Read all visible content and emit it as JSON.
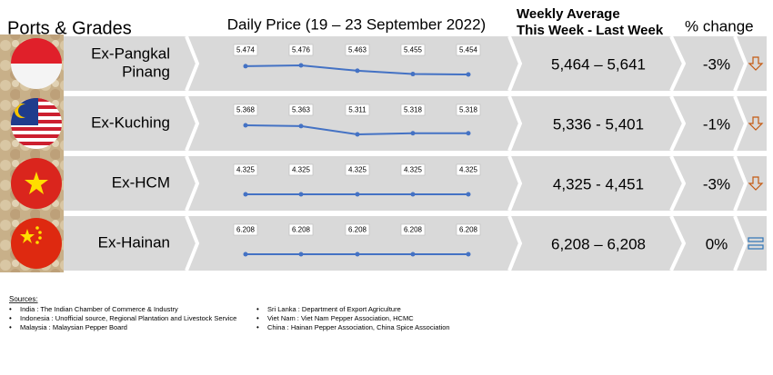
{
  "header": {
    "ports": "Ports & Grades",
    "daily": "Daily Price (19 – 23 September 2022)",
    "weekly": [
      "Weekly Average",
      "This Week - Last Week"
    ],
    "change": "% change"
  },
  "rows": [
    {
      "port": [
        "Ex-Pangkal",
        "Pinang"
      ],
      "prices": [
        5.474,
        5.476,
        5.463,
        5.455,
        5.454
      ],
      "weekly": "5,464 – 5,641",
      "change": "-3%",
      "trend": "down"
    },
    {
      "port": [
        "Ex-Kuching"
      ],
      "prices": [
        5.368,
        5.363,
        5.311,
        5.318,
        5.318
      ],
      "weekly": "5,336 - 5,401",
      "change": "-1%",
      "trend": "down"
    },
    {
      "port": [
        "Ex-HCM"
      ],
      "prices": [
        4.325,
        4.325,
        4.325,
        4.325,
        4.325
      ],
      "weekly": "4,325 - 4,451",
      "change": "-3%",
      "trend": "down"
    },
    {
      "port": [
        "Ex-Hainan"
      ],
      "prices": [
        6.208,
        6.208,
        6.208,
        6.208,
        6.208
      ],
      "weekly": "6,208 – 6,208",
      "change": "0%",
      "trend": "flat"
    }
  ],
  "sources": {
    "title": "Sources:",
    "left": [
      "India : The Indian Chamber of Commerce & Industry",
      "Indonesia : Unofficial source, Regional Plantation and Livestock Service",
      "Malaysia : Malaysian Pepper Board"
    ],
    "right": [
      "Sri Lanka : Department of Export Agriculture",
      "Viet Nam : Viet Nam Pepper Association, HCMC",
      "China : Hainan Pepper Association, China Spice Association"
    ]
  }
}
